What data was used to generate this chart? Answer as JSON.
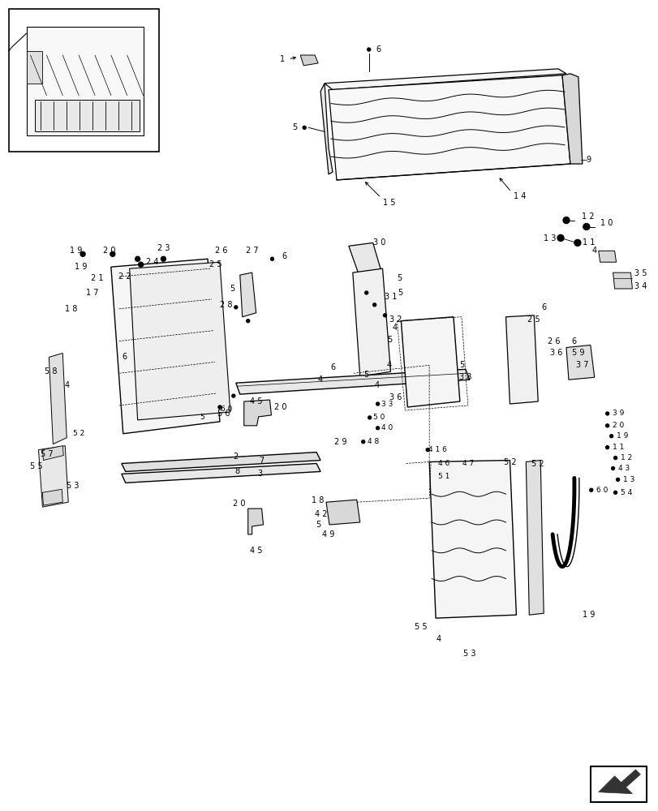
{
  "bg_color": "#ffffff",
  "line_color": "#000000",
  "fig_width": 8.12,
  "fig_height": 10.0
}
